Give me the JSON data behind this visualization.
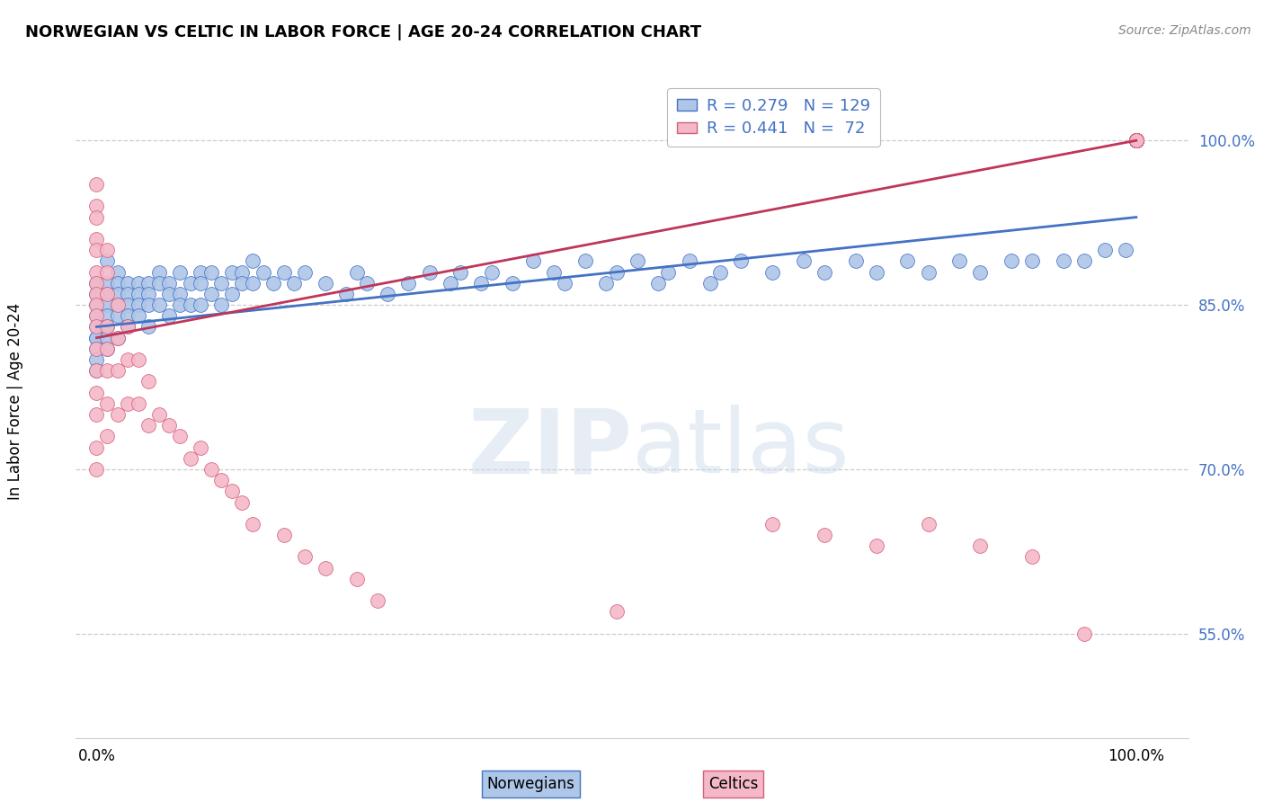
{
  "title": "NORWEGIAN VS CELTIC IN LABOR FORCE | AGE 20-24 CORRELATION CHART",
  "source": "Source: ZipAtlas.com",
  "ylabel": "In Labor Force | Age 20-24",
  "ytick_labels": [
    "55.0%",
    "70.0%",
    "85.0%",
    "100.0%"
  ],
  "ytick_vals": [
    0.55,
    0.7,
    0.85,
    1.0
  ],
  "xtick_labels": [
    "0.0%",
    "100.0%"
  ],
  "xtick_vals": [
    0.0,
    1.0
  ],
  "xlim": [
    -0.02,
    1.05
  ],
  "ylim": [
    0.455,
    1.055
  ],
  "r_norwegian": 0.279,
  "n_norwegian": 129,
  "r_celtic": 0.441,
  "n_celtic": 72,
  "nor_scatter_color": "#aec6e8",
  "nor_edge_color": "#4472c4",
  "cel_scatter_color": "#f4b8c8",
  "cel_edge_color": "#d4607a",
  "nor_line_color": "#4472c4",
  "cel_line_color": "#c0355a",
  "legend_text_color": "#4472c4",
  "watermark_color": "#d0dff0",
  "watermark_text": "ZIPatlas",
  "bottom_legend_nor": "Norwegians",
  "bottom_legend_cel": "Celtics",
  "nor_line_start_y": 0.83,
  "nor_line_end_y": 0.93,
  "cel_line_start_y": 0.82,
  "cel_line_end_y": 1.0,
  "nor_x": [
    0.0,
    0.0,
    0.0,
    0.0,
    0.0,
    0.0,
    0.0,
    0.0,
    0.0,
    0.0,
    0.01,
    0.01,
    0.01,
    0.01,
    0.01,
    0.01,
    0.01,
    0.01,
    0.02,
    0.02,
    0.02,
    0.02,
    0.02,
    0.02,
    0.03,
    0.03,
    0.03,
    0.03,
    0.03,
    0.04,
    0.04,
    0.04,
    0.04,
    0.05,
    0.05,
    0.05,
    0.05,
    0.06,
    0.06,
    0.06,
    0.07,
    0.07,
    0.07,
    0.08,
    0.08,
    0.08,
    0.09,
    0.09,
    0.1,
    0.1,
    0.1,
    0.11,
    0.11,
    0.12,
    0.12,
    0.13,
    0.13,
    0.14,
    0.14,
    0.15,
    0.15,
    0.16,
    0.17,
    0.18,
    0.19,
    0.2,
    0.22,
    0.24,
    0.25,
    0.26,
    0.28,
    0.3,
    0.32,
    0.34,
    0.35,
    0.37,
    0.38,
    0.4,
    0.42,
    0.44,
    0.45,
    0.47,
    0.49,
    0.5,
    0.52,
    0.54,
    0.55,
    0.57,
    0.59,
    0.6,
    0.62,
    0.65,
    0.68,
    0.7,
    0.73,
    0.75,
    0.78,
    0.8,
    0.83,
    0.85,
    0.88,
    0.9,
    0.93,
    0.95,
    0.97,
    0.99,
    1.0,
    1.0,
    1.0,
    1.0,
    1.0,
    1.0,
    1.0,
    1.0,
    1.0,
    1.0,
    1.0,
    1.0,
    1.0,
    1.0,
    1.0,
    1.0,
    1.0,
    1.0,
    1.0,
    1.0,
    1.0,
    1.0,
    1.0,
    1.0,
    1.0,
    1.0,
    1.0,
    1.0,
    1.0
  ],
  "nor_y": [
    0.87,
    0.86,
    0.85,
    0.84,
    0.83,
    0.82,
    0.82,
    0.81,
    0.8,
    0.79,
    0.89,
    0.87,
    0.86,
    0.85,
    0.84,
    0.83,
    0.82,
    0.81,
    0.88,
    0.87,
    0.86,
    0.85,
    0.84,
    0.82,
    0.87,
    0.86,
    0.85,
    0.84,
    0.83,
    0.87,
    0.86,
    0.85,
    0.84,
    0.87,
    0.86,
    0.85,
    0.83,
    0.88,
    0.87,
    0.85,
    0.87,
    0.86,
    0.84,
    0.88,
    0.86,
    0.85,
    0.87,
    0.85,
    0.88,
    0.87,
    0.85,
    0.88,
    0.86,
    0.87,
    0.85,
    0.88,
    0.86,
    0.88,
    0.87,
    0.89,
    0.87,
    0.88,
    0.87,
    0.88,
    0.87,
    0.88,
    0.87,
    0.86,
    0.88,
    0.87,
    0.86,
    0.87,
    0.88,
    0.87,
    0.88,
    0.87,
    0.88,
    0.87,
    0.89,
    0.88,
    0.87,
    0.89,
    0.87,
    0.88,
    0.89,
    0.87,
    0.88,
    0.89,
    0.87,
    0.88,
    0.89,
    0.88,
    0.89,
    0.88,
    0.89,
    0.88,
    0.89,
    0.88,
    0.89,
    0.88,
    0.89,
    0.89,
    0.89,
    0.89,
    0.9,
    0.9,
    1.0,
    1.0,
    1.0,
    1.0,
    1.0,
    1.0,
    1.0,
    1.0,
    1.0,
    1.0,
    1.0,
    1.0,
    1.0,
    1.0,
    1.0,
    1.0,
    1.0,
    1.0,
    1.0,
    1.0,
    1.0,
    1.0,
    1.0,
    1.0,
    1.0,
    1.0,
    1.0,
    1.0,
    1.0
  ],
  "cel_x": [
    0.0,
    0.0,
    0.0,
    0.0,
    0.0,
    0.0,
    0.0,
    0.0,
    0.0,
    0.0,
    0.0,
    0.0,
    0.0,
    0.0,
    0.0,
    0.0,
    0.0,
    0.01,
    0.01,
    0.01,
    0.01,
    0.01,
    0.01,
    0.01,
    0.01,
    0.02,
    0.02,
    0.02,
    0.02,
    0.03,
    0.03,
    0.03,
    0.04,
    0.04,
    0.05,
    0.05,
    0.06,
    0.07,
    0.08,
    0.09,
    0.1,
    0.11,
    0.12,
    0.13,
    0.14,
    0.15,
    0.18,
    0.2,
    0.22,
    0.25,
    0.27,
    0.5,
    0.65,
    0.7,
    0.75,
    0.8,
    0.85,
    0.9,
    0.95,
    1.0,
    1.0,
    1.0,
    1.0,
    1.0,
    1.0,
    1.0,
    1.0,
    1.0,
    1.0,
    1.0,
    1.0
  ],
  "cel_y": [
    0.96,
    0.94,
    0.93,
    0.91,
    0.9,
    0.88,
    0.87,
    0.86,
    0.85,
    0.84,
    0.83,
    0.81,
    0.79,
    0.77,
    0.75,
    0.72,
    0.7,
    0.9,
    0.88,
    0.86,
    0.83,
    0.81,
    0.79,
    0.76,
    0.73,
    0.85,
    0.82,
    0.79,
    0.75,
    0.83,
    0.8,
    0.76,
    0.8,
    0.76,
    0.78,
    0.74,
    0.75,
    0.74,
    0.73,
    0.71,
    0.72,
    0.7,
    0.69,
    0.68,
    0.67,
    0.65,
    0.64,
    0.62,
    0.61,
    0.6,
    0.58,
    0.57,
    0.65,
    0.64,
    0.63,
    0.65,
    0.63,
    0.62,
    0.55,
    1.0,
    1.0,
    1.0,
    1.0,
    1.0,
    1.0,
    1.0,
    1.0,
    1.0,
    1.0,
    1.0,
    1.0
  ]
}
